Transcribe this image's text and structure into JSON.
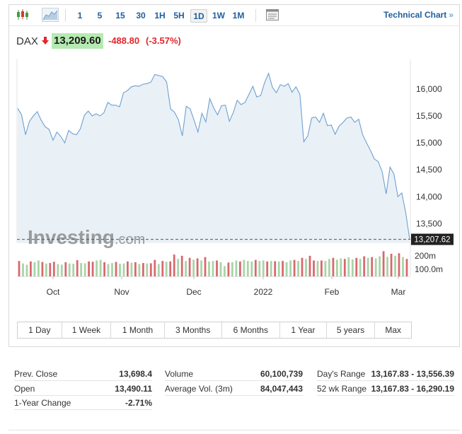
{
  "toolbar": {
    "intervals": [
      "1",
      "5",
      "15",
      "30",
      "1H",
      "5H",
      "1D",
      "1W",
      "1M"
    ],
    "active_interval": "1D",
    "technical_chart_label": "Technical Chart",
    "technical_chart_arrow": "»"
  },
  "quote": {
    "symbol": "DAX",
    "price": "13,209.60",
    "change": "-488.80",
    "change_pct": "(-3.57%)",
    "direction": "down"
  },
  "colors": {
    "line": "#6f9fd0",
    "area": "#e9f1f7",
    "price_badge": "#b5eab0",
    "negative": "#e3262b",
    "volume_up": "#a9d4a7",
    "volume_down": "#d9686e",
    "accent_link": "#1f5e9e"
  },
  "chart_data": {
    "type": "area",
    "x_months": [
      "Oct",
      "Nov",
      "Dec",
      "2022",
      "Feb",
      "Mar"
    ],
    "y_ticks": [
      "16,000",
      "15,500",
      "15,000",
      "14,500",
      "14,000",
      "13,500"
    ],
    "y_tick_values": [
      16000,
      15500,
      15000,
      14500,
      14000,
      13500
    ],
    "ylim": [
      13150,
      16550
    ],
    "last_value_label": "13,207.62",
    "last_value": 13207.62,
    "watermark": "Investing.com",
    "close_series": [
      15640,
      15520,
      15150,
      15400,
      15500,
      15580,
      15420,
      15300,
      15250,
      15050,
      15200,
      15120,
      15000,
      15230,
      15170,
      15150,
      15260,
      15510,
      15590,
      15500,
      15540,
      15500,
      15560,
      15750,
      15700,
      15700,
      15670,
      15930,
      15970,
      16040,
      16060,
      16050,
      16090,
      16100,
      16130,
      16270,
      16250,
      16230,
      16130,
      15630,
      15570,
      15430,
      15130,
      15680,
      15630,
      15420,
      15200,
      15550,
      15390,
      15820,
      15650,
      15520,
      15690,
      15700,
      15400,
      15560,
      15790,
      15710,
      15750,
      15900,
      16050,
      15850,
      15880,
      16120,
      16290,
      16030,
      15930,
      16080,
      16050,
      16100,
      15940,
      16040,
      15900,
      15020,
      15130,
      15460,
      15480,
      15380,
      15550,
      15320,
      15330,
      15160,
      15310,
      15380,
      15460,
      15480,
      15380,
      15440,
      15150,
      15000,
      14860,
      14700,
      14650,
      14460,
      14050,
      14550,
      14420,
      14000,
      14070,
      13700,
      13210
    ],
    "volume_series_m": [
      [
        60,
        "d"
      ],
      [
        50,
        "u"
      ],
      [
        45,
        "u"
      ],
      [
        58,
        "d"
      ],
      [
        55,
        "u"
      ],
      [
        62,
        "u"
      ],
      [
        56,
        "d"
      ],
      [
        50,
        "u"
      ],
      [
        52,
        "d"
      ],
      [
        57,
        "d"
      ],
      [
        48,
        "u"
      ],
      [
        46,
        "u"
      ],
      [
        55,
        "d"
      ],
      [
        50,
        "u"
      ],
      [
        49,
        "u"
      ],
      [
        63,
        "d"
      ],
      [
        52,
        "u"
      ],
      [
        51,
        "u"
      ],
      [
        58,
        "d"
      ],
      [
        57,
        "d"
      ],
      [
        62,
        "u"
      ],
      [
        64,
        "u"
      ],
      [
        55,
        "d"
      ],
      [
        48,
        "u"
      ],
      [
        52,
        "u"
      ],
      [
        56,
        "d"
      ],
      [
        49,
        "u"
      ],
      [
        50,
        "u"
      ],
      [
        58,
        "d"
      ],
      [
        53,
        "u"
      ],
      [
        55,
        "d"
      ],
      [
        48,
        "u"
      ],
      [
        52,
        "d"
      ],
      [
        50,
        "u"
      ],
      [
        51,
        "d"
      ],
      [
        64,
        "d"
      ],
      [
        48,
        "u"
      ],
      [
        60,
        "d"
      ],
      [
        57,
        "u"
      ],
      [
        58,
        "d"
      ],
      [
        85,
        "d"
      ],
      [
        68,
        "u"
      ],
      [
        80,
        "d"
      ],
      [
        60,
        "u"
      ],
      [
        72,
        "d"
      ],
      [
        65,
        "u"
      ],
      [
        70,
        "d"
      ],
      [
        62,
        "u"
      ],
      [
        75,
        "d"
      ],
      [
        58,
        "u"
      ],
      [
        60,
        "u"
      ],
      [
        62,
        "d"
      ],
      [
        55,
        "u"
      ],
      [
        40,
        "u"
      ],
      [
        54,
        "d"
      ],
      [
        55,
        "u"
      ],
      [
        62,
        "u"
      ],
      [
        58,
        "d"
      ],
      [
        64,
        "u"
      ],
      [
        60,
        "u"
      ],
      [
        58,
        "u"
      ],
      [
        64,
        "d"
      ],
      [
        60,
        "u"
      ],
      [
        62,
        "u"
      ],
      [
        58,
        "d"
      ],
      [
        60,
        "u"
      ],
      [
        59,
        "d"
      ],
      [
        58,
        "u"
      ],
      [
        60,
        "d"
      ],
      [
        55,
        "u"
      ],
      [
        62,
        "u"
      ],
      [
        64,
        "d"
      ],
      [
        60,
        "u"
      ],
      [
        72,
        "d"
      ],
      [
        68,
        "u"
      ],
      [
        80,
        "d"
      ],
      [
        62,
        "d"
      ],
      [
        60,
        "u"
      ],
      [
        62,
        "d"
      ],
      [
        60,
        "u"
      ],
      [
        68,
        "u"
      ],
      [
        72,
        "d"
      ],
      [
        65,
        "u"
      ],
      [
        70,
        "u"
      ],
      [
        68,
        "d"
      ],
      [
        74,
        "u"
      ],
      [
        66,
        "u"
      ],
      [
        72,
        "d"
      ],
      [
        68,
        "u"
      ],
      [
        78,
        "d"
      ],
      [
        72,
        "u"
      ],
      [
        75,
        "d"
      ],
      [
        70,
        "u"
      ],
      [
        78,
        "u"
      ],
      [
        98,
        "d"
      ],
      [
        76,
        "u"
      ],
      [
        88,
        "d"
      ],
      [
        80,
        "u"
      ],
      [
        90,
        "d"
      ],
      [
        75,
        "u"
      ],
      [
        68,
        "d"
      ]
    ],
    "volume_ticks": [
      "200m",
      "100.0m"
    ]
  },
  "ranges": [
    "1 Day",
    "1 Week",
    "1 Month",
    "3 Months",
    "6 Months",
    "1 Year",
    "5 years",
    "Max"
  ],
  "stats": {
    "prev_close": {
      "label": "Prev. Close",
      "value": "13,698.4"
    },
    "open": {
      "label": "Open",
      "value": "13,490.11"
    },
    "one_year_change": {
      "label": "1-Year Change",
      "value": "-2.71%"
    },
    "volume": {
      "label": "Volume",
      "value": "60,100,739"
    },
    "avg_volume": {
      "label": "Average Vol. (3m)",
      "value": "84,047,443"
    },
    "days_range": {
      "label": "Day's Range",
      "value": "13,167.83 - 13,556.39"
    },
    "week52_range": {
      "label": "52 wk Range",
      "value": "13,167.83 - 16,290.19"
    }
  }
}
